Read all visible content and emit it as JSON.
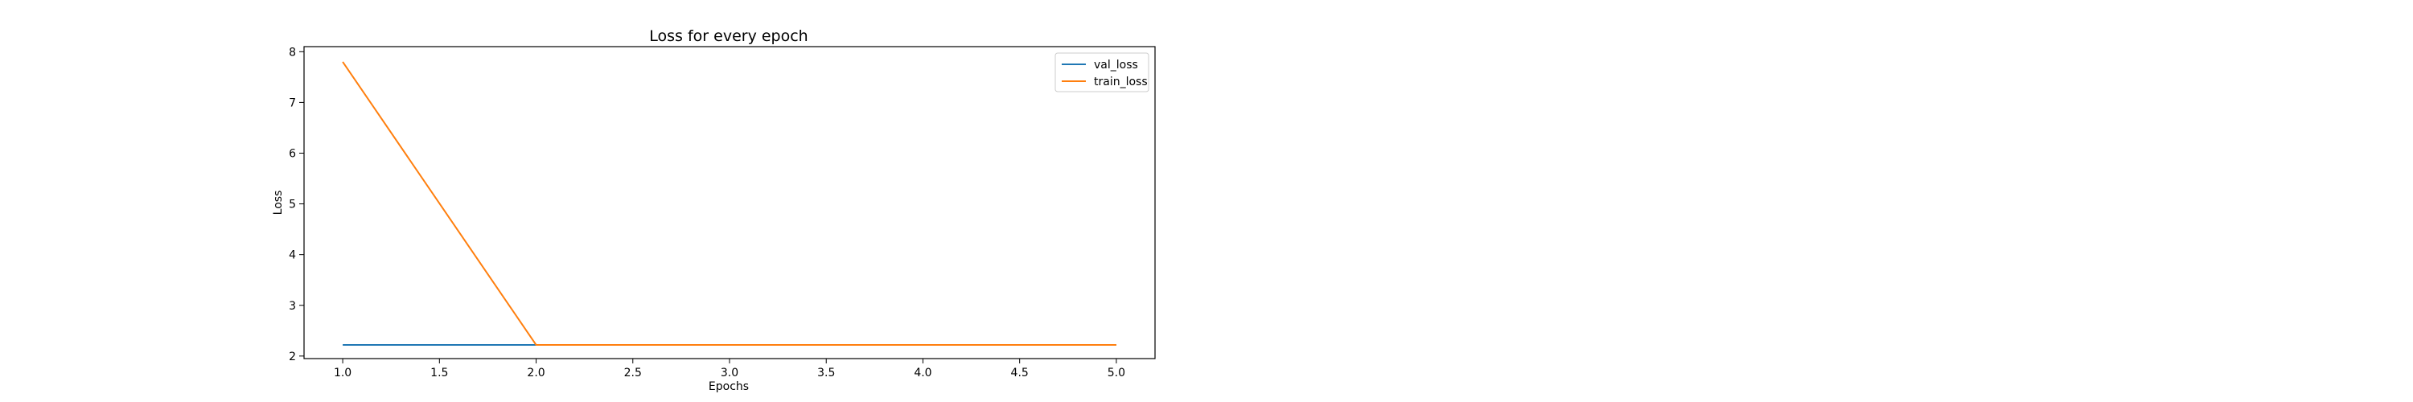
{
  "chart_data": {
    "type": "line",
    "title": "Loss for every epoch",
    "xlabel": "Epochs",
    "ylabel": "Loss",
    "xlim": [
      0.8,
      5.2
    ],
    "ylim": [
      1.95,
      8.1
    ],
    "x_ticks": [
      1.0,
      1.5,
      2.0,
      2.5,
      3.0,
      3.5,
      4.0,
      4.5,
      5.0
    ],
    "y_ticks": [
      2,
      3,
      4,
      5,
      6,
      7,
      8
    ],
    "x_tick_labels": [
      "1.0",
      "1.5",
      "2.0",
      "2.5",
      "3.0",
      "3.5",
      "4.0",
      "4.5",
      "5.0"
    ],
    "y_tick_labels": [
      "2",
      "3",
      "4",
      "5",
      "6",
      "7",
      "8"
    ],
    "grid": false,
    "legend_position": "top-right",
    "x": [
      1,
      2,
      3,
      4,
      5
    ],
    "series": [
      {
        "name": "val_loss",
        "values": [
          2.22,
          2.22,
          2.22,
          2.22,
          2.22
        ],
        "color": "#1f77b4"
      },
      {
        "name": "train_loss",
        "values": [
          7.8,
          2.22,
          2.22,
          2.22,
          2.22
        ],
        "color": "#ff7f0e"
      }
    ]
  }
}
